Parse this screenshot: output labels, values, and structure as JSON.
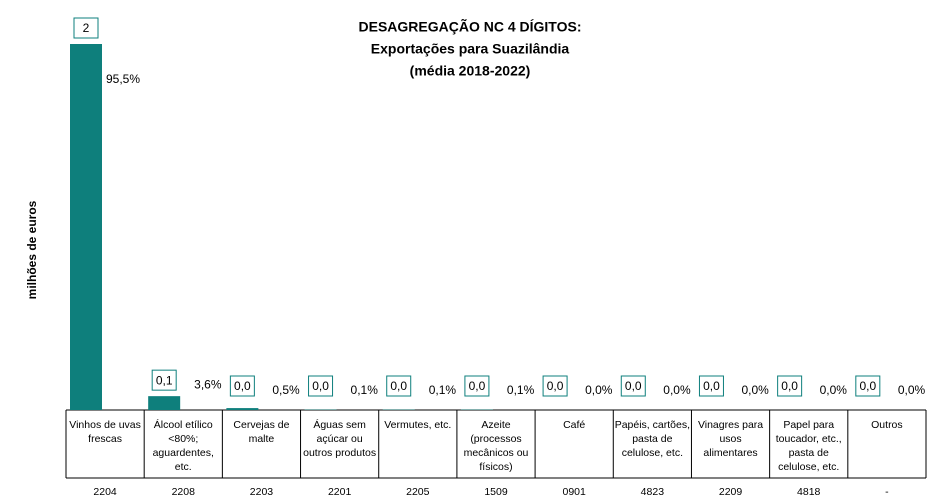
{
  "chart_data": {
    "type": "bar",
    "title": [
      "DESAGREGAÇÃO NC 4 DÍGITOS:",
      "Exportações para Suazilândia",
      "(média 2018-2022)"
    ],
    "y_label": "milhões de euros",
    "color": "#0e7f7c",
    "categories": [
      "Vinhos de uvas frescas",
      "Álcool etílico <80%; aguardentes, etc.",
      "Cervejas de malte",
      "Águas sem açúcar ou outros produtos",
      "Vermutes, etc.",
      "Azeite (processos mecânicos ou físicos)",
      "Café",
      "Papéis, cartões, pasta de celulose, etc.",
      "Vinagres para usos alimentares",
      "Papel para toucador, etc., pasta de celulose, etc.",
      "Outros"
    ],
    "codes": [
      "2204",
      "2208",
      "2203",
      "2201",
      "2205",
      "1509",
      "0901",
      "4823",
      "2209",
      "4818",
      "-"
    ],
    "values": [
      2.3,
      0.087,
      0.012,
      0.0024,
      0.0024,
      0.0024,
      0,
      0,
      0,
      0,
      0
    ],
    "value_labels": [
      "2",
      "0,1",
      "0,0",
      "0,0",
      "0,0",
      "0,0",
      "0,0",
      "0,0",
      "0,0",
      "0,0",
      "0,0"
    ],
    "shares": [
      95.5,
      3.6,
      0.5,
      0.1,
      0.1,
      0.1,
      0,
      0,
      0,
      0,
      0
    ],
    "share_labels": [
      "95,5%",
      "3,6%",
      "0,5%",
      "0,1%",
      "0,1%",
      "0,1%",
      "0,0%",
      "0,0%",
      "0,0%",
      "0,0%",
      "0,0%"
    ]
  }
}
